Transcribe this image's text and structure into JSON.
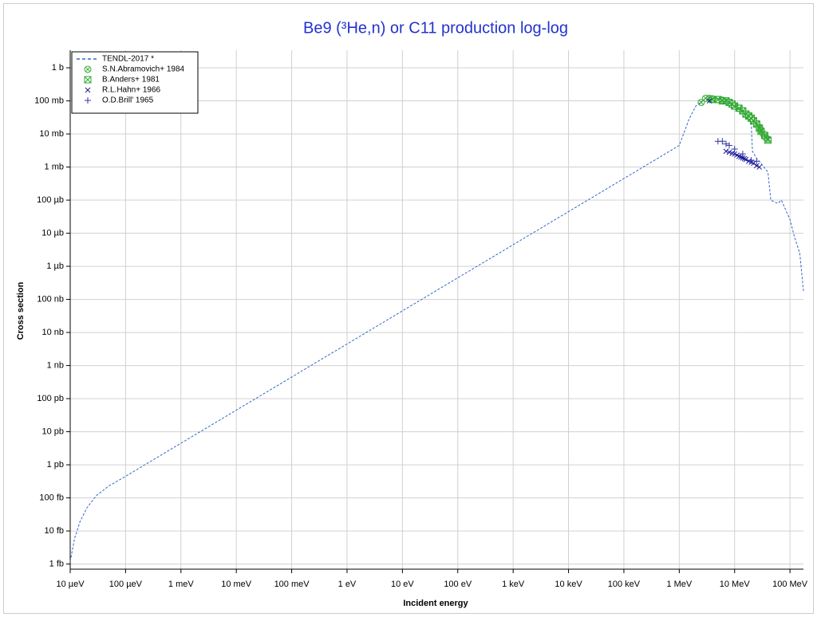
{
  "chart_data": {
    "type": "line",
    "title": "Be9 (³He,n) or C11 production log-log",
    "x_label": "Incident energy",
    "y_label": "Cross section",
    "log_x": true,
    "log_y": true,
    "grid": true,
    "legend": "top-left",
    "xlim": [
      1e-05,
      175000000
    ],
    "ylim": [
      7e-16,
      3.4
    ],
    "xticks": [
      {
        "value": 1e-05,
        "label": "10 µeV"
      },
      {
        "value": 0.0001,
        "label": "100 µeV"
      },
      {
        "value": 0.001,
        "label": "1 meV"
      },
      {
        "value": 0.01,
        "label": "10 meV"
      },
      {
        "value": 0.1,
        "label": "100 meV"
      },
      {
        "value": 1,
        "label": "1 eV"
      },
      {
        "value": 10,
        "label": "10 eV"
      },
      {
        "value": 100,
        "label": "100 eV"
      },
      {
        "value": 1000,
        "label": "1 keV"
      },
      {
        "value": 10000,
        "label": "10 keV"
      },
      {
        "value": 100000,
        "label": "100 keV"
      },
      {
        "value": 1000000,
        "label": "1 MeV"
      },
      {
        "value": 10000000,
        "label": "10 MeV"
      },
      {
        "value": 100000000,
        "label": "100 MeV"
      }
    ],
    "yticks": [
      {
        "value": 1e-15,
        "label": "1 fb"
      },
      {
        "value": 1e-14,
        "label": "10 fb"
      },
      {
        "value": 1e-13,
        "label": "100 fb"
      },
      {
        "value": 1e-12,
        "label": "1 pb"
      },
      {
        "value": 1e-11,
        "label": "10 pb"
      },
      {
        "value": 1e-10,
        "label": "100 pb"
      },
      {
        "value": 1e-09,
        "label": "1 nb"
      },
      {
        "value": 1e-08,
        "label": "10 nb"
      },
      {
        "value": 1e-07,
        "label": "100 nb"
      },
      {
        "value": 1e-06,
        "label": "1 µb"
      },
      {
        "value": 1e-05,
        "label": "10 µb"
      },
      {
        "value": 0.0001,
        "label": "100 µb"
      },
      {
        "value": 0.001,
        "label": "1 mb"
      },
      {
        "value": 0.01,
        "label": "10 mb"
      },
      {
        "value": 0.1,
        "label": "100 mb"
      },
      {
        "value": 1,
        "label": "1 b"
      }
    ],
    "series": [
      {
        "name": "TENDL-2017 *",
        "color": "#3366cc",
        "marker": "line",
        "x": [
          1e-05,
          1.2e-05,
          1.5e-05,
          2e-05,
          3e-05,
          5e-05,
          0.0001,
          0.001,
          1000000,
          1500000,
          2000000,
          3000000,
          5000000,
          10000000,
          15000000,
          20000000,
          21000000,
          25000000,
          30000000,
          40000000,
          45000000,
          60000000,
          70000000,
          80000000,
          100000000,
          120000000,
          150000000,
          175000000
        ],
        "values": [
          1.2e-15,
          6e-15,
          1.9e-14,
          5e-14,
          1.2e-13,
          2.3e-13,
          4.5e-13,
          4.5e-12,
          0.0045,
          0.028,
          0.07,
          0.12,
          0.12,
          0.07,
          0.04,
          0.02,
          0.003,
          0.0018,
          0.0013,
          0.0007,
          0.0001,
          8e-05,
          0.0001,
          6e-05,
          2.6e-05,
          8e-06,
          2.5e-06,
          1.8e-07
        ]
      },
      {
        "name": "S.N.Abramovich+ 1984",
        "color": "#33aa33",
        "marker": "circle-x",
        "x": [
          2500000,
          3000000,
          3500000,
          4000000,
          5000000,
          6000000,
          7000000,
          8000000,
          10000000,
          12000000,
          14000000,
          16000000,
          18000000,
          20000000,
          22000000,
          25000000,
          28000000,
          30000000,
          33000000,
          36000000,
          40000000
        ],
        "values": [
          0.09,
          0.12,
          0.12,
          0.115,
          0.11,
          0.105,
          0.1,
          0.09,
          0.07,
          0.06,
          0.05,
          0.04,
          0.035,
          0.03,
          0.025,
          0.02,
          0.016,
          0.013,
          0.01,
          0.008,
          0.007
        ]
      },
      {
        "name": "B.Anders+ 1981",
        "color": "#33aa33",
        "marker": "square-x",
        "x": [
          4000000,
          5000000,
          6000000,
          7000000,
          8000000,
          9000000,
          10000000,
          12000000,
          14000000,
          16000000,
          18000000,
          20000000,
          22000000,
          25000000,
          28000000,
          30000000,
          35000000,
          40000000
        ],
        "values": [
          0.11,
          0.11,
          0.1,
          0.1,
          0.09,
          0.08,
          0.07,
          0.06,
          0.05,
          0.04,
          0.035,
          0.03,
          0.025,
          0.02,
          0.015,
          0.012,
          0.009,
          0.0065
        ]
      },
      {
        "name": "R.L.Hahn+ 1966",
        "color": "#1a1a99",
        "marker": "x",
        "x": [
          3500000,
          7000000,
          8000000,
          9000000,
          10000000,
          11000000,
          12000000,
          13000000,
          14000000,
          15000000,
          16000000,
          18000000,
          20000000,
          22000000,
          25000000,
          28000000
        ],
        "values": [
          0.1,
          0.003,
          0.0028,
          0.0026,
          0.0025,
          0.0023,
          0.0021,
          0.002,
          0.0019,
          0.0018,
          0.0017,
          0.0015,
          0.0014,
          0.0013,
          0.0011,
          0.001
        ]
      },
      {
        "name": "O.D.Brill' 1965",
        "color": "#3333aa",
        "marker": "plus",
        "x": [
          5000000,
          6000000,
          7000000,
          8000000,
          10000000,
          14000000,
          20000000,
          25000000
        ],
        "values": [
          0.006,
          0.006,
          0.005,
          0.0045,
          0.0035,
          0.0025,
          0.0016,
          0.0015
        ]
      }
    ]
  }
}
